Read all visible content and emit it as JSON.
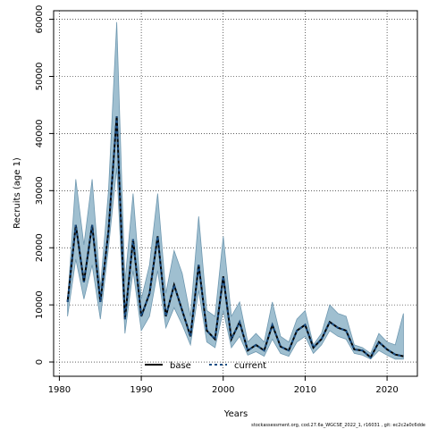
{
  "chart_data": {
    "type": "line",
    "xlabel": "Years",
    "ylabel": "Recruits (age 1)",
    "xlim": [
      1979.3,
      2023.7
    ],
    "ylim": [
      -2500,
      61500
    ],
    "x_ticks": [
      1980,
      1990,
      2000,
      2010,
      2020
    ],
    "y_ticks": [
      0,
      10000,
      20000,
      30000,
      40000,
      50000,
      60000
    ],
    "x_tick_labels": [
      "1980",
      "1990",
      "2000",
      "2010",
      "2020"
    ],
    "y_tick_labels": [
      "0",
      "10000",
      "20000",
      "30000",
      "40000",
      "50000",
      "60000"
    ],
    "grid": true,
    "legend_position": "bottom-center",
    "band_color": "#9fbfd0",
    "band_edge_color": "#6f98b0",
    "x": [
      1981,
      1982,
      1983,
      1984,
      1985,
      1986,
      1987,
      1988,
      1989,
      1990,
      1991,
      1992,
      1993,
      1994,
      1995,
      1996,
      1997,
      1998,
      1999,
      2000,
      2001,
      2002,
      2003,
      2004,
      2005,
      2006,
      2007,
      2008,
      2009,
      2010,
      2011,
      2012,
      2013,
      2014,
      2015,
      2016,
      2017,
      2018,
      2019,
      2020,
      2021,
      2022
    ],
    "band_upper": [
      10500,
      32000,
      20500,
      32000,
      13000,
      30000,
      59500,
      14000,
      29500,
      11000,
      17000,
      29500,
      12000,
      19500,
      15500,
      8000,
      25500,
      9000,
      8000,
      22000,
      8000,
      10500,
      3500,
      5000,
      3500,
      10500,
      4500,
      3500,
      7500,
      9000,
      3000,
      5000,
      10000,
      8500,
      8000,
      3000,
      2500,
      1500,
      5000,
      3500,
      3000,
      8500
    ],
    "band_lower": [
      8000,
      18000,
      11000,
      17000,
      7500,
      20000,
      34000,
      5000,
      16000,
      5500,
      8000,
      16000,
      6000,
      9500,
      6500,
      3000,
      12500,
      3500,
      2500,
      9000,
      2500,
      4500,
      1200,
      1800,
      1000,
      4000,
      1500,
      1000,
      3500,
      4500,
      1500,
      3000,
      5500,
      4500,
      4000,
      1500,
      1200,
      500,
      2000,
      1200,
      500,
      500
    ],
    "legend": [
      "base",
      "current"
    ],
    "series": [
      {
        "name": "base",
        "values": [
          10500,
          24000,
          14000,
          24000,
          10500,
          23000,
          43000,
          7500,
          21500,
          8000,
          12000,
          22000,
          8000,
          13500,
          9000,
          4500,
          17000,
          5500,
          4000,
          15000,
          4000,
          7000,
          2000,
          3000,
          2000,
          6500,
          2700,
          2000,
          5500,
          6500,
          2500,
          4000,
          7000,
          6000,
          5500,
          2200,
          2000,
          800,
          3500,
          2200,
          1300,
          1000
        ]
      },
      {
        "name": "current",
        "values": [
          10500,
          24000,
          14000,
          24000,
          10500,
          23000,
          43000,
          7500,
          21500,
          8000,
          12000,
          22000,
          8000,
          13500,
          9000,
          4500,
          17000,
          5500,
          4000,
          15000,
          4000,
          7000,
          2000,
          3000,
          2000,
          6500,
          2700,
          2000,
          5500,
          6500,
          2500,
          4000,
          7000,
          6000,
          5500,
          2200,
          2000,
          800,
          3500,
          2200,
          1300,
          1000
        ]
      }
    ]
  },
  "footer": "stockassessment.org, cod.27.6a_WGCSE_2022_1, r16031 , git: ec2c2a0c6dde"
}
